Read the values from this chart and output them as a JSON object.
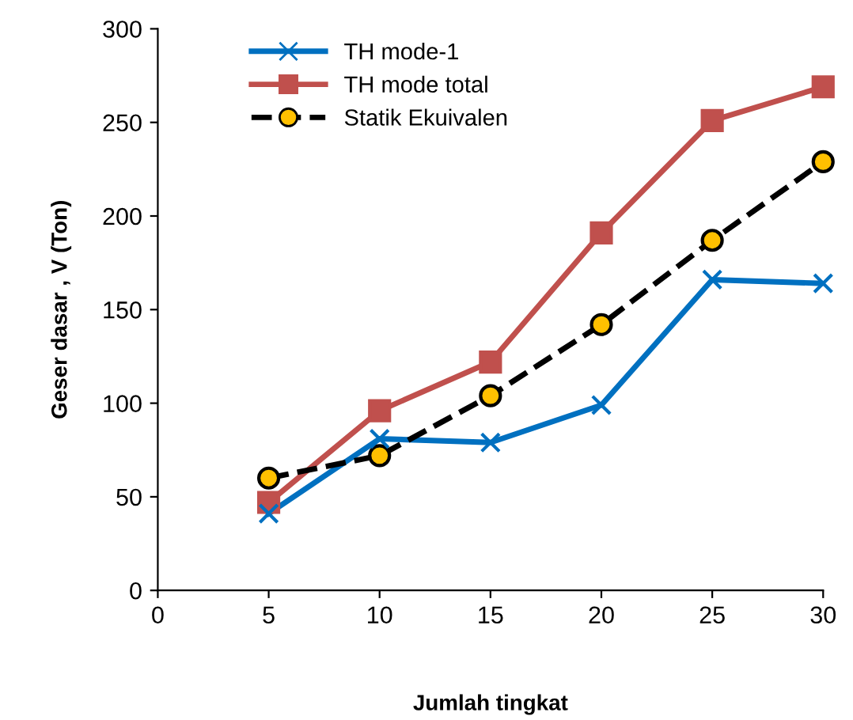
{
  "chart_data": {
    "type": "line",
    "xlabel": "Jumlah tingkat",
    "ylabel": "Geser dasar , V (Ton)",
    "xlim": [
      0,
      30
    ],
    "xticks": [
      0,
      5,
      10,
      15,
      20,
      25,
      30
    ],
    "ylim": [
      0,
      300
    ],
    "yticks": [
      0,
      50,
      100,
      150,
      200,
      250,
      300
    ],
    "grid": false,
    "legend": "top left",
    "series": [
      {
        "name": "TH mode-1",
        "color": "#0070c0",
        "marker": "cross",
        "line_style": "solid",
        "x": [
          5,
          10,
          15,
          20,
          25,
          30
        ],
        "values": [
          41,
          81,
          79,
          99,
          166,
          164
        ]
      },
      {
        "name": "TH mode total",
        "color": "#c0504d",
        "marker": "square",
        "line_style": "solid",
        "x": [
          5,
          10,
          15,
          20,
          25,
          30
        ],
        "values": [
          47,
          96,
          122,
          191,
          251,
          269
        ]
      },
      {
        "name": "Statik Ekuivalen",
        "color": "#000000",
        "marker": "circle",
        "line_style": "dashed",
        "x": [
          5,
          10,
          15,
          20,
          25,
          30
        ],
        "values": [
          60,
          72,
          104,
          142,
          187,
          229
        ]
      }
    ]
  }
}
